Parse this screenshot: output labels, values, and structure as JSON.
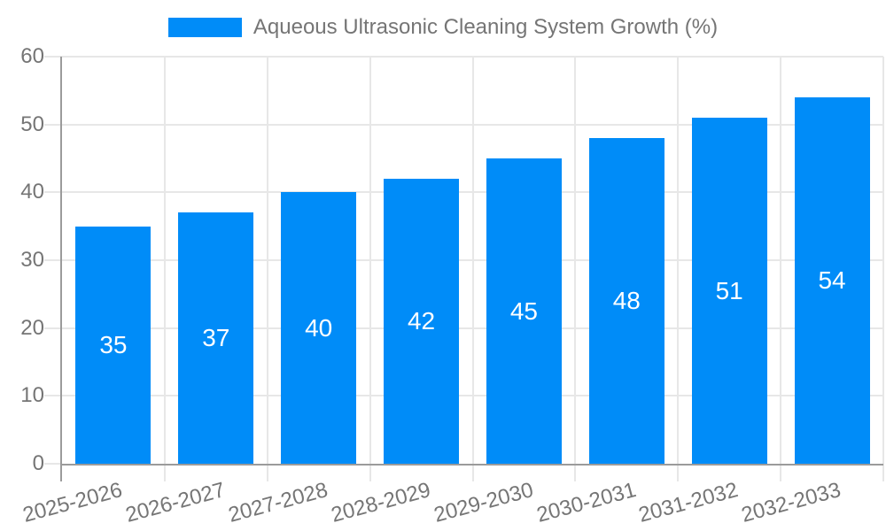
{
  "chart_data": {
    "type": "bar",
    "title": "Aqueous Ultrasonic Cleaning System Growth (%)",
    "categories": [
      "2025-2026",
      "2026-2027",
      "2027-2028",
      "2028-2029",
      "2029-2030",
      "2030-2031",
      "2031-2032",
      "2032-2033"
    ],
    "values": [
      35,
      37,
      40,
      42,
      45,
      48,
      51,
      54
    ],
    "xlabel": "",
    "ylabel": "",
    "ylim": [
      0,
      60
    ],
    "yticks": [
      0,
      10,
      20,
      30,
      40,
      50,
      60
    ],
    "grid": true,
    "legend_position": "top",
    "value_label_position": "inside-center",
    "x_label_rotation_deg": -15,
    "colors": {
      "bar": "#008CF8",
      "axis_text": "#757575",
      "grid_line": "#e7e7e7",
      "axis_line": "#9b9b9b",
      "value_label": "#ffffff",
      "background": "#ffffff"
    }
  }
}
